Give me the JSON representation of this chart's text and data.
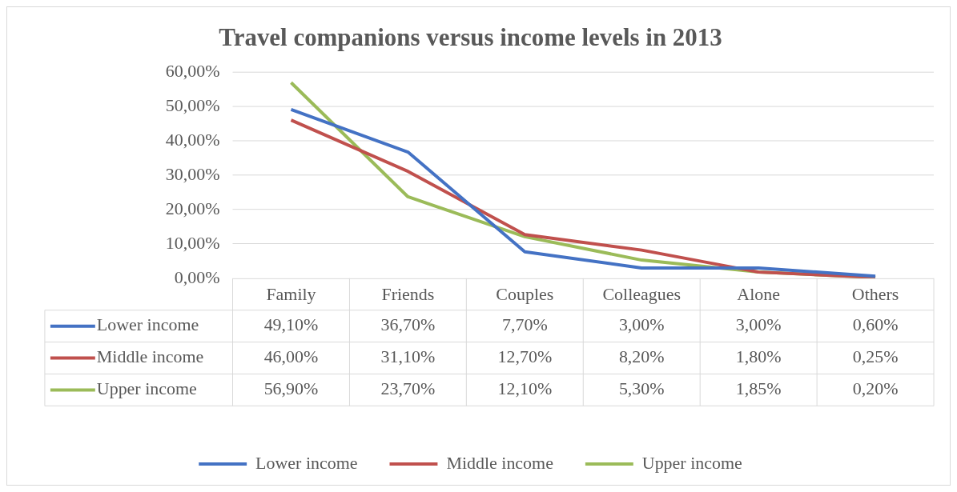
{
  "chart_data": {
    "type": "line",
    "title": "Travel companions versus income levels in 2013",
    "categories": [
      "Family",
      "Friends",
      "Couples",
      "Colleagues",
      "Alone",
      "Others"
    ],
    "series": [
      {
        "name": "Lower income",
        "color": "#4472c4",
        "values": [
          49.1,
          36.7,
          7.7,
          3.0,
          3.0,
          0.6
        ],
        "value_labels": [
          "49,10%",
          "36,70%",
          "7,70%",
          "3,00%",
          "3,00%",
          "0,60%"
        ]
      },
      {
        "name": "Middle income",
        "color": "#c0504d",
        "values": [
          46.0,
          31.1,
          12.7,
          8.2,
          1.8,
          0.25
        ],
        "value_labels": [
          "46,00%",
          "31,10%",
          "12,70%",
          "8,20%",
          "1,80%",
          "0,25%"
        ]
      },
      {
        "name": "Upper income",
        "color": "#9bbb59",
        "values": [
          56.9,
          23.7,
          12.1,
          5.3,
          1.85,
          0.2
        ],
        "value_labels": [
          "56,90%",
          "23,70%",
          "12,10%",
          "5,30%",
          "1,85%",
          "0,20%"
        ]
      }
    ],
    "ylim": [
      0,
      60
    ],
    "yticks": [
      {
        "value": 0,
        "label": "0,00%"
      },
      {
        "value": 10,
        "label": "10,00%"
      },
      {
        "value": 20,
        "label": "20,00%"
      },
      {
        "value": 30,
        "label": "30,00%"
      },
      {
        "value": 40,
        "label": "40,00%"
      },
      {
        "value": 50,
        "label": "50,00%"
      },
      {
        "value": 60,
        "label": "60,00%"
      }
    ],
    "grid": "y",
    "legend": "bottom"
  }
}
